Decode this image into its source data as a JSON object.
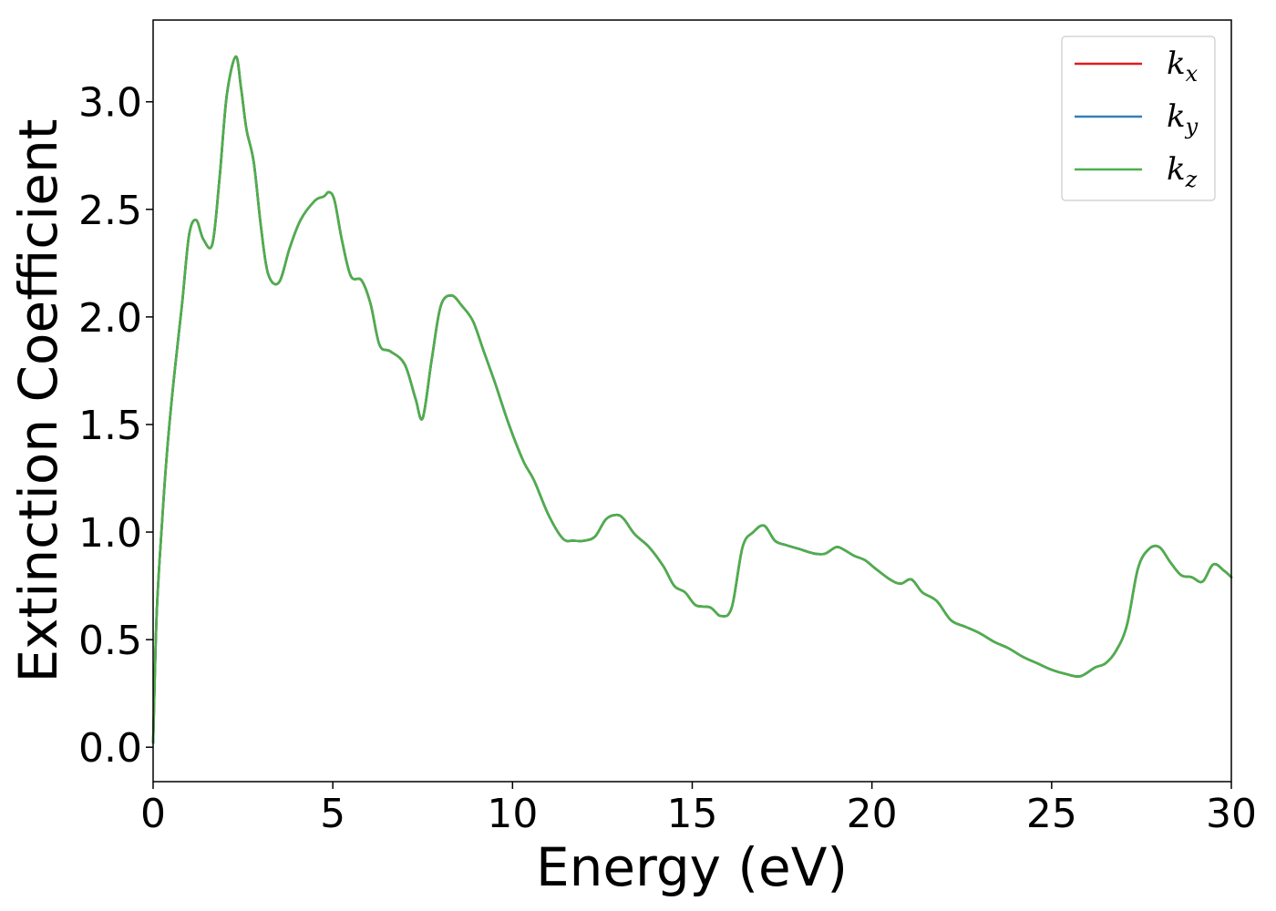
{
  "chart_data": {
    "type": "line",
    "title": "",
    "xlabel": "Energy (eV)",
    "ylabel": "Extinction Coefficient",
    "xlim": [
      0,
      30
    ],
    "ylim": [
      -0.16,
      3.38
    ],
    "xticks": [
      0,
      5,
      10,
      15,
      20,
      25,
      30
    ],
    "xtick_labels": [
      "0",
      "5",
      "10",
      "15",
      "20",
      "25",
      "30"
    ],
    "yticks": [
      0.0,
      0.5,
      1.0,
      1.5,
      2.0,
      2.5,
      3.0
    ],
    "ytick_labels": [
      "0.0",
      "0.5",
      "1.0",
      "1.5",
      "2.0",
      "2.5",
      "3.0"
    ],
    "grid": false,
    "legend_position": "top-right",
    "x": [
      0.0,
      0.1,
      0.25,
      0.4,
      0.6,
      0.8,
      1.0,
      1.2,
      1.4,
      1.65,
      1.85,
      2.05,
      2.3,
      2.45,
      2.6,
      2.8,
      3.0,
      3.2,
      3.5,
      3.8,
      4.1,
      4.5,
      4.75,
      4.9,
      5.05,
      5.25,
      5.5,
      5.8,
      6.05,
      6.3,
      6.6,
      7.0,
      7.3,
      7.5,
      7.75,
      8.0,
      8.3,
      8.6,
      8.9,
      9.2,
      9.5,
      9.9,
      10.3,
      10.6,
      11.0,
      11.4,
      11.7,
      12.0,
      12.3,
      12.6,
      12.9,
      13.1,
      13.4,
      13.8,
      14.2,
      14.5,
      14.8,
      15.1,
      15.5,
      15.8,
      16.1,
      16.4,
      16.7,
      17.0,
      17.3,
      17.6,
      18.0,
      18.4,
      18.7,
      19.0,
      19.2,
      19.5,
      19.8,
      20.1,
      20.5,
      20.8,
      21.1,
      21.4,
      21.8,
      22.2,
      22.6,
      23.0,
      23.4,
      23.8,
      24.2,
      24.6,
      25.0,
      25.4,
      25.8,
      26.2,
      26.5,
      26.8,
      27.1,
      27.4,
      27.7,
      28.0,
      28.3,
      28.6,
      28.9,
      29.2,
      29.5,
      29.8,
      30.0
    ],
    "series": [
      {
        "name": "k_x",
        "color": "#e41a1c",
        "values": [
          0.02,
          0.62,
          1.05,
          1.4,
          1.75,
          2.05,
          2.38,
          2.45,
          2.36,
          2.34,
          2.65,
          3.03,
          3.21,
          3.06,
          2.87,
          2.72,
          2.42,
          2.2,
          2.16,
          2.32,
          2.45,
          2.54,
          2.56,
          2.58,
          2.54,
          2.36,
          2.19,
          2.17,
          2.06,
          1.87,
          1.84,
          1.78,
          1.62,
          1.53,
          1.8,
          2.05,
          2.1,
          2.05,
          1.98,
          1.84,
          1.7,
          1.5,
          1.33,
          1.24,
          1.08,
          0.97,
          0.96,
          0.96,
          0.98,
          1.06,
          1.08,
          1.06,
          0.99,
          0.93,
          0.84,
          0.75,
          0.72,
          0.66,
          0.65,
          0.61,
          0.65,
          0.93,
          1.0,
          1.03,
          0.96,
          0.94,
          0.92,
          0.9,
          0.9,
          0.93,
          0.92,
          0.89,
          0.87,
          0.83,
          0.78,
          0.76,
          0.78,
          0.72,
          0.68,
          0.59,
          0.56,
          0.53,
          0.49,
          0.46,
          0.42,
          0.39,
          0.36,
          0.34,
          0.33,
          0.37,
          0.39,
          0.45,
          0.57,
          0.83,
          0.92,
          0.93,
          0.86,
          0.8,
          0.79,
          0.77,
          0.85,
          0.82,
          0.79
        ]
      },
      {
        "name": "k_y",
        "color": "#377eb8",
        "values": [
          0.02,
          0.62,
          1.05,
          1.4,
          1.75,
          2.05,
          2.38,
          2.45,
          2.36,
          2.34,
          2.65,
          3.03,
          3.21,
          3.06,
          2.87,
          2.72,
          2.42,
          2.2,
          2.16,
          2.32,
          2.45,
          2.54,
          2.56,
          2.58,
          2.54,
          2.36,
          2.19,
          2.17,
          2.06,
          1.87,
          1.84,
          1.78,
          1.62,
          1.53,
          1.8,
          2.05,
          2.1,
          2.05,
          1.98,
          1.84,
          1.7,
          1.5,
          1.33,
          1.24,
          1.08,
          0.97,
          0.96,
          0.96,
          0.98,
          1.06,
          1.08,
          1.06,
          0.99,
          0.93,
          0.84,
          0.75,
          0.72,
          0.66,
          0.65,
          0.61,
          0.65,
          0.93,
          1.0,
          1.03,
          0.96,
          0.94,
          0.92,
          0.9,
          0.9,
          0.93,
          0.92,
          0.89,
          0.87,
          0.83,
          0.78,
          0.76,
          0.78,
          0.72,
          0.68,
          0.59,
          0.56,
          0.53,
          0.49,
          0.46,
          0.42,
          0.39,
          0.36,
          0.34,
          0.33,
          0.37,
          0.39,
          0.45,
          0.57,
          0.83,
          0.92,
          0.93,
          0.86,
          0.8,
          0.79,
          0.77,
          0.85,
          0.82,
          0.79
        ]
      },
      {
        "name": "k_z",
        "color": "#4daf4a",
        "values": [
          0.02,
          0.62,
          1.05,
          1.4,
          1.75,
          2.05,
          2.38,
          2.45,
          2.36,
          2.34,
          2.65,
          3.03,
          3.21,
          3.06,
          2.87,
          2.72,
          2.42,
          2.2,
          2.16,
          2.32,
          2.45,
          2.54,
          2.56,
          2.58,
          2.54,
          2.36,
          2.19,
          2.17,
          2.06,
          1.87,
          1.84,
          1.78,
          1.62,
          1.53,
          1.8,
          2.05,
          2.1,
          2.05,
          1.98,
          1.84,
          1.7,
          1.5,
          1.33,
          1.24,
          1.08,
          0.97,
          0.96,
          0.96,
          0.98,
          1.06,
          1.08,
          1.06,
          0.99,
          0.93,
          0.84,
          0.75,
          0.72,
          0.66,
          0.65,
          0.61,
          0.65,
          0.93,
          1.0,
          1.03,
          0.96,
          0.94,
          0.92,
          0.9,
          0.9,
          0.93,
          0.92,
          0.89,
          0.87,
          0.83,
          0.78,
          0.76,
          0.78,
          0.72,
          0.68,
          0.59,
          0.56,
          0.53,
          0.49,
          0.46,
          0.42,
          0.39,
          0.36,
          0.34,
          0.33,
          0.37,
          0.39,
          0.45,
          0.57,
          0.83,
          0.92,
          0.93,
          0.86,
          0.8,
          0.79,
          0.77,
          0.85,
          0.82,
          0.79
        ]
      }
    ],
    "legend": [
      {
        "base": "k",
        "sub": "x",
        "color": "#e41a1c"
      },
      {
        "base": "k",
        "sub": "y",
        "color": "#377eb8"
      },
      {
        "base": "k",
        "sub": "z",
        "color": "#4daf4a"
      }
    ]
  }
}
